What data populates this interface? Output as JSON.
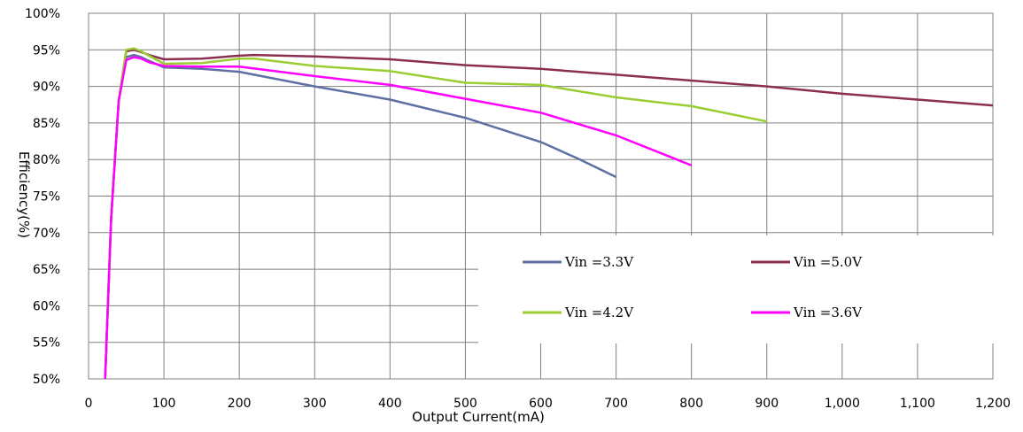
{
  "chart_data": {
    "type": "line",
    "xlabel": "Output Current(mA)",
    "ylabel": "Efficiency(%)",
    "xlim": [
      0,
      1200
    ],
    "ylim": [
      50,
      100
    ],
    "grid": true,
    "legend_position": "lower-right",
    "x_ticks": [
      "0",
      "100",
      "200",
      "300",
      "400",
      "500",
      "600",
      "700",
      "800",
      "900",
      "1,000",
      "1,100",
      "1,200"
    ],
    "y_ticks": [
      "50%",
      "55%",
      "60%",
      "65%",
      "70%",
      "75%",
      "80%",
      "85%",
      "90%",
      "95%",
      "100%"
    ],
    "series": [
      {
        "name": "Vin =3.3V",
        "color": "#5f6fa3",
        "points": [
          [
            22,
            50
          ],
          [
            30,
            72
          ],
          [
            40,
            88
          ],
          [
            50,
            94
          ],
          [
            60,
            94.3
          ],
          [
            70,
            94
          ],
          [
            80,
            93.5
          ],
          [
            100,
            92.6
          ],
          [
            150,
            92.4
          ],
          [
            200,
            92
          ],
          [
            300,
            90
          ],
          [
            400,
            88.2
          ],
          [
            500,
            85.7
          ],
          [
            600,
            82.4
          ],
          [
            650,
            80.1
          ],
          [
            700,
            77.6
          ]
        ]
      },
      {
        "name": "Vin =5.0V",
        "color": "#8b2f52",
        "points": [
          [
            22,
            50
          ],
          [
            30,
            72
          ],
          [
            40,
            88
          ],
          [
            50,
            94.8
          ],
          [
            60,
            95
          ],
          [
            70,
            94.7
          ],
          [
            80,
            94.3
          ],
          [
            100,
            93.7
          ],
          [
            150,
            93.8
          ],
          [
            200,
            94.2
          ],
          [
            220,
            94.3
          ],
          [
            300,
            94.1
          ],
          [
            400,
            93.7
          ],
          [
            500,
            92.9
          ],
          [
            600,
            92.4
          ],
          [
            700,
            91.6
          ],
          [
            800,
            90.8
          ],
          [
            900,
            90
          ],
          [
            1000,
            89
          ],
          [
            1100,
            88.2
          ],
          [
            1200,
            87.4
          ]
        ]
      },
      {
        "name": "Vin =4.2V",
        "color": "#9acd32",
        "points": [
          [
            22,
            50
          ],
          [
            30,
            72
          ],
          [
            40,
            88
          ],
          [
            50,
            95
          ],
          [
            60,
            95.2
          ],
          [
            70,
            94.8
          ],
          [
            80,
            94.2
          ],
          [
            100,
            93.1
          ],
          [
            150,
            93.2
          ],
          [
            200,
            93.8
          ],
          [
            220,
            93.8
          ],
          [
            300,
            92.8
          ],
          [
            400,
            92.1
          ],
          [
            500,
            90.5
          ],
          [
            600,
            90.2
          ],
          [
            700,
            88.5
          ],
          [
            800,
            87.3
          ],
          [
            900,
            85.2
          ]
        ]
      },
      {
        "name": "Vin =3.6V",
        "color": "#ff00ff",
        "points": [
          [
            22,
            50
          ],
          [
            30,
            72
          ],
          [
            40,
            88
          ],
          [
            50,
            93.6
          ],
          [
            60,
            94
          ],
          [
            70,
            93.8
          ],
          [
            80,
            93.3
          ],
          [
            100,
            92.8
          ],
          [
            150,
            92.7
          ],
          [
            200,
            92.7
          ],
          [
            300,
            91.4
          ],
          [
            400,
            90.2
          ],
          [
            500,
            88.3
          ],
          [
            600,
            86.4
          ],
          [
            700,
            83.3
          ],
          [
            800,
            79.2
          ]
        ]
      }
    ]
  }
}
